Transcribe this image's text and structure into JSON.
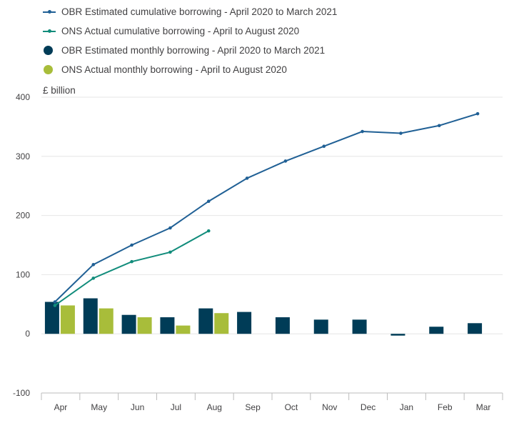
{
  "chart_data": {
    "type": "bar+line",
    "unit_label": "£ billion",
    "ylim": [
      -100,
      400
    ],
    "yticks": [
      -100,
      0,
      100,
      200,
      300,
      400
    ],
    "categories": [
      "Apr",
      "May",
      "Jun",
      "Jul",
      "Aug",
      "Sep",
      "Oct",
      "Nov",
      "Dec",
      "Jan",
      "Feb",
      "Mar"
    ],
    "grid": "horizontal",
    "legend_position": "top-left",
    "bar_series": [
      {
        "name": "OBR Estimated monthly borrowing - April 2020 to March 2021",
        "color": "#003c57",
        "values": [
          54,
          60,
          32,
          28,
          43,
          37,
          28,
          24,
          24,
          -3,
          12,
          18
        ]
      },
      {
        "name": "ONS Actual monthly borrowing - April to August 2020",
        "color": "#a8bd3a",
        "values": [
          48,
          43,
          28,
          14,
          35,
          null,
          null,
          null,
          null,
          null,
          null,
          null
        ]
      }
    ],
    "line_series": [
      {
        "name": "OBR Estimated cumulative borrowing - April 2020 to March 2021",
        "color": "#206095",
        "values": [
          54,
          117,
          150,
          179,
          224,
          263,
          292,
          317,
          342,
          339,
          352,
          372
        ]
      },
      {
        "name": "ONS Actual cumulative borrowing - April to August 2020",
        "color": "#118c7b",
        "values": [
          48,
          94,
          122,
          138,
          174,
          null,
          null,
          null,
          null,
          null,
          null,
          null
        ]
      }
    ],
    "legend_order": [
      {
        "kind": "line",
        "series": "line_series",
        "index": 0
      },
      {
        "kind": "line",
        "series": "line_series",
        "index": 1
      },
      {
        "kind": "dot",
        "series": "bar_series",
        "index": 0
      },
      {
        "kind": "dot",
        "series": "bar_series",
        "index": 1
      }
    ],
    "axis_color": "#bcbcbc",
    "grid_color": "#e6e6e6"
  }
}
